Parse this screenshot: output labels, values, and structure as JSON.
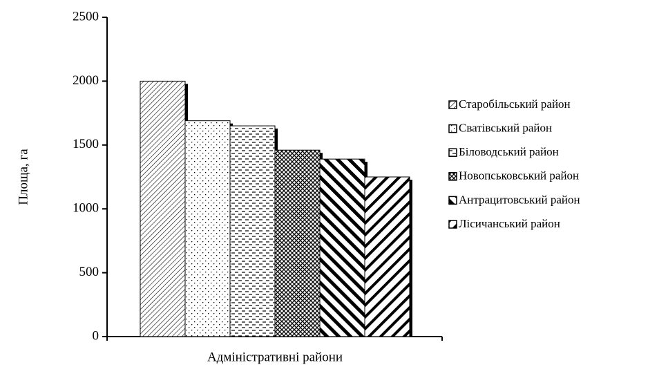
{
  "chart_data": {
    "type": "bar",
    "x_label": "Адміністративні райони",
    "y_label": "Площа, га",
    "series": [
      {
        "name": "Старобільський район",
        "color": "#000000",
        "pattern": "fine-diagonal",
        "values": [
          2000
        ]
      },
      {
        "name": "Сватівський район",
        "color": "#000000",
        "pattern": "dots",
        "values": [
          1690
        ]
      },
      {
        "name": "Біловодський район",
        "color": "#000000",
        "pattern": "dashes",
        "values": [
          1650
        ]
      },
      {
        "name": "Новопськовський район",
        "color": "#000000",
        "pattern": "weave",
        "values": [
          1460
        ]
      },
      {
        "name": "Антрацитовський район",
        "color": "#000000",
        "pattern": "thick-backslash",
        "values": [
          1390
        ]
      },
      {
        "name": "Лісичанський район",
        "color": "#000000",
        "pattern": "thick-diagonal",
        "values": [
          1250
        ]
      }
    ],
    "ylim": [
      0,
      2500
    ],
    "yticks": [
      0,
      500,
      1000,
      1500,
      2000,
      2500
    ],
    "legend": "right"
  }
}
